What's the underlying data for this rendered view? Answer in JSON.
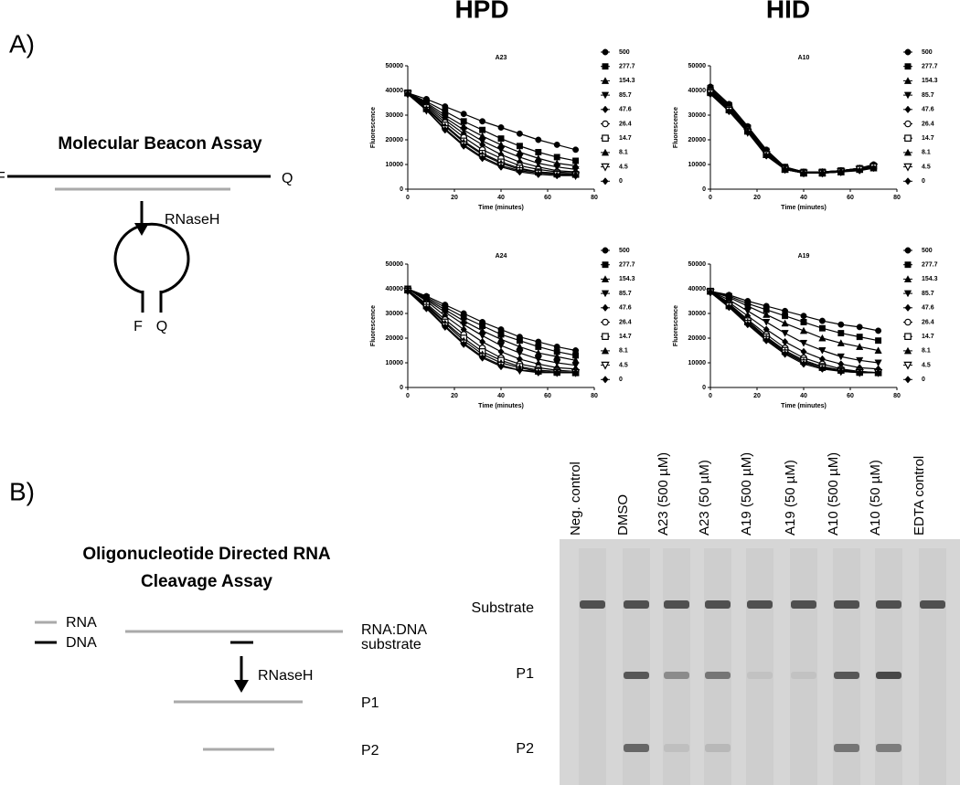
{
  "columns": [
    "HPD",
    "HID"
  ],
  "panel_a": {
    "label": "A)",
    "diagram": {
      "title": "Molecular Beacon Assay",
      "left_end": "F",
      "right_end": "Q",
      "enzyme": "RNaseH",
      "stem_left": "F",
      "stem_right": "Q"
    }
  },
  "panel_b": {
    "label": "B)",
    "diagram": {
      "title_lines": [
        "Oligonucleotide Directed RNA",
        "Cleavage Assay"
      ],
      "legend": [
        "RNA",
        "DNA"
      ],
      "substrate_lines": [
        "RNA:DNA",
        "substrate"
      ],
      "enzyme": "RNaseH",
      "products": [
        "P1",
        "P2"
      ]
    },
    "gel": {
      "lanes": [
        "Neg. control",
        "DMSO",
        "A23 (500 µM)",
        "A23 (50 µM)",
        "A19 (500 µM)",
        "A19 (50 µM)",
        "A10 (500 µM)",
        "A10 (50 µM)",
        "EDTA control"
      ],
      "band_labels": [
        "Substrate",
        "P1",
        "P2"
      ]
    }
  },
  "chart_data": [
    {
      "type": "line",
      "title": "A23",
      "x_label": "Time (minutes)",
      "y_label": "Fluorescence",
      "xlim": [
        0,
        80
      ],
      "xticks": [
        0,
        20,
        40,
        60,
        80
      ],
      "ylim": [
        0,
        50000
      ],
      "yticks": [
        0,
        10000,
        20000,
        30000,
        40000,
        50000
      ],
      "x": [
        0,
        8,
        16,
        24,
        32,
        40,
        48,
        56,
        64,
        72
      ],
      "series": [
        {
          "name": "500",
          "color": "#000000",
          "marker": "circle",
          "values": [
            39000,
            36500,
            33500,
            30500,
            27500,
            25000,
            22500,
            20000,
            18000,
            16000
          ]
        },
        {
          "name": "277.7",
          "color": "#000000",
          "marker": "square",
          "values": [
            39000,
            35500,
            31500,
            27500,
            24000,
            20500,
            17500,
            15000,
            13000,
            11500
          ]
        },
        {
          "name": "154.3",
          "color": "#000000",
          "marker": "triangle-up",
          "values": [
            39000,
            35000,
            30000,
            25500,
            21500,
            18000,
            15000,
            12500,
            10500,
            9500
          ]
        },
        {
          "name": "85.7",
          "color": "#000000",
          "marker": "triangle-down",
          "values": [
            39000,
            34500,
            29000,
            24000,
            19500,
            16000,
            13000,
            10500,
            9000,
            8000
          ]
        },
        {
          "name": "47.6",
          "color": "#000000",
          "marker": "diamond",
          "values": [
            39000,
            34000,
            28000,
            22500,
            18000,
            14000,
            11000,
            9000,
            7500,
            7000
          ]
        },
        {
          "name": "26.4",
          "color": "#000000",
          "marker": "circle-open",
          "values": [
            39000,
            33500,
            27000,
            21000,
            16000,
            12500,
            9500,
            8000,
            7000,
            6500
          ]
        },
        {
          "name": "14.7",
          "color": "#000000",
          "marker": "square-open",
          "values": [
            39000,
            33000,
            26000,
            19500,
            14500,
            11000,
            8500,
            7000,
            6500,
            6000
          ]
        },
        {
          "name": "8.1",
          "color": "#000000",
          "marker": "triangle-up",
          "values": [
            39000,
            32500,
            25500,
            19000,
            14000,
            10500,
            8000,
            7000,
            6000,
            6000
          ]
        },
        {
          "name": "4.5",
          "color": "#000000",
          "marker": "triangle-down-open",
          "values": [
            38500,
            32000,
            24500,
            18000,
            13000,
            9500,
            7500,
            6500,
            6000,
            5500
          ]
        },
        {
          "name": "0",
          "color": "#000000",
          "marker": "diamond",
          "values": [
            38500,
            32000,
            24000,
            17500,
            12500,
            9000,
            7000,
            6000,
            5500,
            5500
          ]
        }
      ]
    },
    {
      "type": "line",
      "title": "A10",
      "x_label": "Time (minutes)",
      "y_label": "Fluorescence",
      "xlim": [
        0,
        80
      ],
      "xticks": [
        0,
        20,
        40,
        60,
        80
      ],
      "ylim": [
        0,
        50000
      ],
      "yticks": [
        0,
        10000,
        20000,
        30000,
        40000,
        50000
      ],
      "x": [
        0,
        8,
        16,
        24,
        32,
        40,
        48,
        56,
        64,
        70
      ],
      "series": [
        {
          "name": "500",
          "color": "#000000",
          "marker": "circle",
          "values": [
            41500,
            34500,
            25500,
            16000,
            9000,
            7000,
            7000,
            7500,
            8500,
            10000
          ]
        },
        {
          "name": "277.7",
          "color": "#000000",
          "marker": "square",
          "values": [
            41000,
            34000,
            25000,
            15500,
            9000,
            7000,
            7000,
            7500,
            8500,
            9500
          ]
        },
        {
          "name": "154.3",
          "color": "#000000",
          "marker": "triangle-up",
          "values": [
            40500,
            33500,
            24500,
            15000,
            8500,
            7000,
            7000,
            7500,
            8500,
            9500
          ]
        },
        {
          "name": "85.7",
          "color": "#000000",
          "marker": "triangle-down",
          "values": [
            40000,
            33000,
            24500,
            15000,
            8500,
            6500,
            7000,
            7500,
            8000,
            9000
          ]
        },
        {
          "name": "47.6",
          "color": "#000000",
          "marker": "diamond",
          "values": [
            40000,
            33000,
            24000,
            14500,
            8500,
            6500,
            7000,
            7500,
            8500,
            9500
          ]
        },
        {
          "name": "26.4",
          "color": "#000000",
          "marker": "circle-open",
          "values": [
            39500,
            32500,
            24000,
            14500,
            8500,
            6500,
            6500,
            7500,
            8000,
            9000
          ]
        },
        {
          "name": "14.7",
          "color": "#000000",
          "marker": "square-open",
          "values": [
            39500,
            32500,
            23500,
            14000,
            8000,
            6500,
            6500,
            7000,
            8000,
            9000
          ]
        },
        {
          "name": "8.1",
          "color": "#000000",
          "marker": "triangle-up",
          "values": [
            39000,
            32000,
            23500,
            14000,
            8000,
            6500,
            6500,
            7000,
            8000,
            8500
          ]
        },
        {
          "name": "4.5",
          "color": "#000000",
          "marker": "triangle-down-open",
          "values": [
            39000,
            32000,
            23000,
            14000,
            8000,
            6500,
            6500,
            7000,
            8000,
            9000
          ]
        },
        {
          "name": "0",
          "color": "#000000",
          "marker": "diamond",
          "values": [
            38500,
            31500,
            23000,
            13500,
            8000,
            6500,
            6500,
            7000,
            7500,
            8500
          ]
        }
      ]
    },
    {
      "type": "line",
      "title": "A24",
      "x_label": "Time (minutes)",
      "y_label": "Fluorescence",
      "xlim": [
        0,
        80
      ],
      "xticks": [
        0,
        20,
        40,
        60,
        80
      ],
      "ylim": [
        0,
        50000
      ],
      "yticks": [
        0,
        10000,
        20000,
        30000,
        40000,
        50000
      ],
      "x": [
        0,
        8,
        16,
        24,
        32,
        40,
        48,
        56,
        64,
        72
      ],
      "series": [
        {
          "name": "500",
          "color": "#000000",
          "marker": "circle",
          "values": [
            40000,
            37000,
            33500,
            30000,
            26500,
            23500,
            20500,
            18500,
            16500,
            15000
          ]
        },
        {
          "name": "277.7",
          "color": "#000000",
          "marker": "square",
          "values": [
            40000,
            36500,
            32500,
            28500,
            25000,
            21500,
            19000,
            16500,
            14500,
            13000
          ]
        },
        {
          "name": "154.3",
          "color": "#000000",
          "marker": "triangle-up",
          "values": [
            40000,
            36000,
            31500,
            27000,
            23000,
            19500,
            16500,
            14000,
            12500,
            11000
          ]
        },
        {
          "name": "85.7",
          "color": "#000000",
          "marker": "triangle-down",
          "values": [
            40000,
            35500,
            30500,
            25500,
            21000,
            17000,
            14000,
            11500,
            10000,
            9000
          ]
        },
        {
          "name": "47.6",
          "color": "#000000",
          "marker": "diamond",
          "values": [
            40000,
            35000,
            29000,
            23500,
            18500,
            14500,
            11500,
            9500,
            8000,
            7500
          ]
        },
        {
          "name": "26.4",
          "color": "#000000",
          "marker": "circle-open",
          "values": [
            39500,
            34000,
            27500,
            21500,
            16000,
            12000,
            9500,
            8000,
            7000,
            6500
          ]
        },
        {
          "name": "14.7",
          "color": "#000000",
          "marker": "square-open",
          "values": [
            39500,
            33500,
            26500,
            20000,
            14500,
            11000,
            8500,
            7000,
            6500,
            6000
          ]
        },
        {
          "name": "8.1",
          "color": "#000000",
          "marker": "triangle-up",
          "values": [
            39500,
            33000,
            26000,
            19000,
            13500,
            10000,
            8000,
            6500,
            6000,
            6000
          ]
        },
        {
          "name": "4.5",
          "color": "#000000",
          "marker": "triangle-down-open",
          "values": [
            39000,
            32500,
            25000,
            18000,
            12500,
            9000,
            7000,
            6500,
            6000,
            6000
          ]
        },
        {
          "name": "0",
          "color": "#000000",
          "marker": "diamond",
          "values": [
            39000,
            32000,
            24500,
            17500,
            12000,
            8500,
            7000,
            6000,
            6000,
            6000
          ]
        }
      ]
    },
    {
      "type": "line",
      "title": "A19",
      "x_label": "Time (minutes)",
      "y_label": "Fluorescence",
      "xlim": [
        0,
        80
      ],
      "xticks": [
        0,
        20,
        40,
        60,
        80
      ],
      "ylim": [
        0,
        50000
      ],
      "yticks": [
        0,
        10000,
        20000,
        30000,
        40000,
        50000
      ],
      "x": [
        0,
        8,
        16,
        24,
        32,
        40,
        48,
        56,
        64,
        72
      ],
      "series": [
        {
          "name": "500",
          "color": "#000000",
          "marker": "circle",
          "values": [
            39000,
            37500,
            35000,
            33000,
            31000,
            29000,
            27000,
            25500,
            24500,
            23000
          ]
        },
        {
          "name": "277.7",
          "color": "#000000",
          "marker": "square",
          "values": [
            39000,
            37000,
            34000,
            31500,
            29000,
            26500,
            24000,
            22000,
            20500,
            19000
          ]
        },
        {
          "name": "154.3",
          "color": "#000000",
          "marker": "triangle-up",
          "values": [
            39000,
            36500,
            33000,
            29500,
            26000,
            23000,
            20000,
            18000,
            16500,
            15000
          ]
        },
        {
          "name": "85.7",
          "color": "#000000",
          "marker": "triangle-down",
          "values": [
            39000,
            35500,
            31000,
            26500,
            22000,
            18000,
            15000,
            12500,
            11000,
            10000
          ]
        },
        {
          "name": "47.6",
          "color": "#000000",
          "marker": "diamond",
          "values": [
            39000,
            34500,
            29000,
            23500,
            18500,
            14500,
            11500,
            9500,
            8000,
            7500
          ]
        },
        {
          "name": "26.4",
          "color": "#000000",
          "marker": "circle-open",
          "values": [
            39000,
            34000,
            27500,
            21500,
            16000,
            12000,
            9500,
            7500,
            6500,
            6000
          ]
        },
        {
          "name": "14.7",
          "color": "#000000",
          "marker": "square-open",
          "values": [
            39000,
            33500,
            27000,
            20500,
            15000,
            11000,
            8500,
            7000,
            6500,
            6000
          ]
        },
        {
          "name": "8.1",
          "color": "#000000",
          "marker": "triangle-up",
          "values": [
            39000,
            33000,
            26500,
            20000,
            14500,
            10500,
            8000,
            7000,
            6000,
            6000
          ]
        },
        {
          "name": "4.5",
          "color": "#000000",
          "marker": "triangle-down-open",
          "values": [
            38500,
            33000,
            26000,
            19500,
            14000,
            10000,
            8000,
            6500,
            6000,
            6000
          ]
        },
        {
          "name": "0",
          "color": "#000000",
          "marker": "diamond",
          "values": [
            38500,
            32500,
            25500,
            19000,
            13500,
            9500,
            7500,
            6500,
            6000,
            6000
          ]
        }
      ]
    }
  ]
}
